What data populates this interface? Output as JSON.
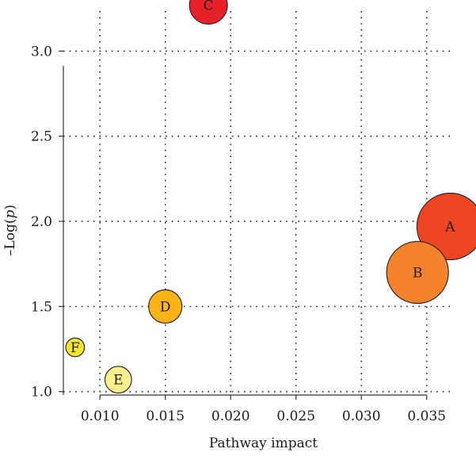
{
  "chart_data": {
    "type": "scatter",
    "title": "",
    "xlabel": "Pathway impact",
    "ylabel_prefix": "–Log(",
    "ylabel_var": "p",
    "ylabel_suffix": ")",
    "xlim": [
      0.0072,
      0.0375
    ],
    "ylim": [
      0.98,
      3.3
    ],
    "xticks": [
      0.01,
      0.015,
      0.02,
      0.025,
      0.03,
      0.035
    ],
    "xtick_labels": [
      "0.010",
      "0.015",
      "0.020",
      "0.025",
      "0.030",
      "0.035"
    ],
    "yticks": [
      1.0,
      1.5,
      2.0,
      2.5,
      3.0
    ],
    "ytick_labels": [
      "1.0",
      "1.5",
      "2.0",
      "2.5",
      "3.0"
    ],
    "grid": true,
    "points": [
      {
        "label": "A",
        "x": 0.0368,
        "y": 1.97,
        "size": 1.0,
        "color": "#ee4623"
      },
      {
        "label": "B",
        "x": 0.0343,
        "y": 1.7,
        "size": 0.93,
        "color": "#f4832c"
      },
      {
        "label": "C",
        "x": 0.0183,
        "y": 3.27,
        "size": 0.57,
        "color": "#e8202a"
      },
      {
        "label": "D",
        "x": 0.015,
        "y": 1.5,
        "size": 0.5,
        "color": "#fbb316"
      },
      {
        "label": "E",
        "x": 0.0114,
        "y": 1.07,
        "size": 0.4,
        "color": "#fdf08c"
      },
      {
        "label": "F",
        "x": 0.0081,
        "y": 1.26,
        "size": 0.28,
        "color": "#f3e52e"
      }
    ]
  }
}
